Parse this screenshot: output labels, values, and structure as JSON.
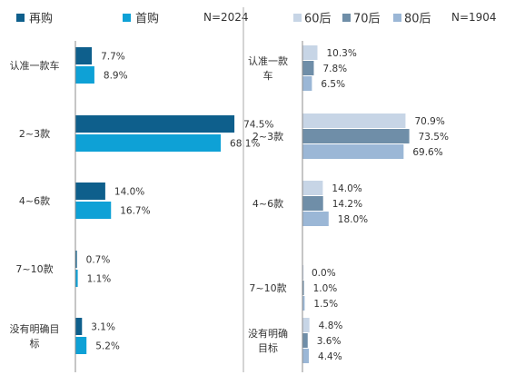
{
  "chart_data": [
    {
      "type": "bar",
      "orientation": "horizontal",
      "note": "N=2024",
      "categories": [
        "认准一款车",
        "2~3款",
        "4~6款",
        "7~10款",
        "没有明确目标"
      ],
      "category_lines": [
        [
          "认准一款车"
        ],
        [
          "2~3款"
        ],
        [
          "4~6款"
        ],
        [
          "7~10款"
        ],
        [
          "没有明确目",
          "标"
        ]
      ],
      "series": [
        {
          "name": "再购",
          "color": "#0e5f8c",
          "values": [
            7.7,
            74.5,
            14.0,
            0.7,
            3.1
          ],
          "labels": [
            "7.7%",
            "74.5%",
            "14.0%",
            "0.7%",
            "3.1%"
          ]
        },
        {
          "name": "首购",
          "color": "#0ea1d6",
          "values": [
            8.9,
            68.1,
            16.7,
            1.1,
            5.2
          ],
          "labels": [
            "8.9%",
            "68.1%",
            "16.7%",
            "1.1%",
            "5.2%"
          ]
        }
      ],
      "legend_position": "top",
      "xlim": [
        0,
        100
      ],
      "grid": false
    },
    {
      "type": "bar",
      "orientation": "horizontal",
      "note": "N=1904",
      "categories": [
        "认准一款车",
        "2~3款",
        "4~6款",
        "7~10款",
        "没有明确目标"
      ],
      "category_lines": [
        [
          "认准一款",
          "车"
        ],
        [
          "2~3款"
        ],
        [
          "4~6款"
        ],
        [
          "7~10款"
        ],
        [
          "没有明确",
          "目标"
        ]
      ],
      "series": [
        {
          "name": "60后",
          "color": "#c7d5e6",
          "values": [
            10.3,
            70.9,
            14.0,
            0.0,
            4.8
          ],
          "labels": [
            "10.3%",
            "70.9%",
            "14.0%",
            "0.0%",
            "4.8%"
          ]
        },
        {
          "name": "70后",
          "color": "#6f8ea8",
          "values": [
            7.8,
            73.5,
            14.2,
            1.0,
            3.6
          ],
          "labels": [
            "7.8%",
            "73.5%",
            "14.2%",
            "1.0%",
            "3.6%"
          ]
        },
        {
          "name": "80后",
          "color": "#9bb7d6",
          "values": [
            6.5,
            69.6,
            18.0,
            1.5,
            4.4
          ],
          "labels": [
            "6.5%",
            "69.6%",
            "18.0%",
            "1.5%",
            "4.4%"
          ]
        }
      ],
      "legend_position": "top",
      "xlim": [
        0,
        100
      ],
      "grid": false
    }
  ]
}
